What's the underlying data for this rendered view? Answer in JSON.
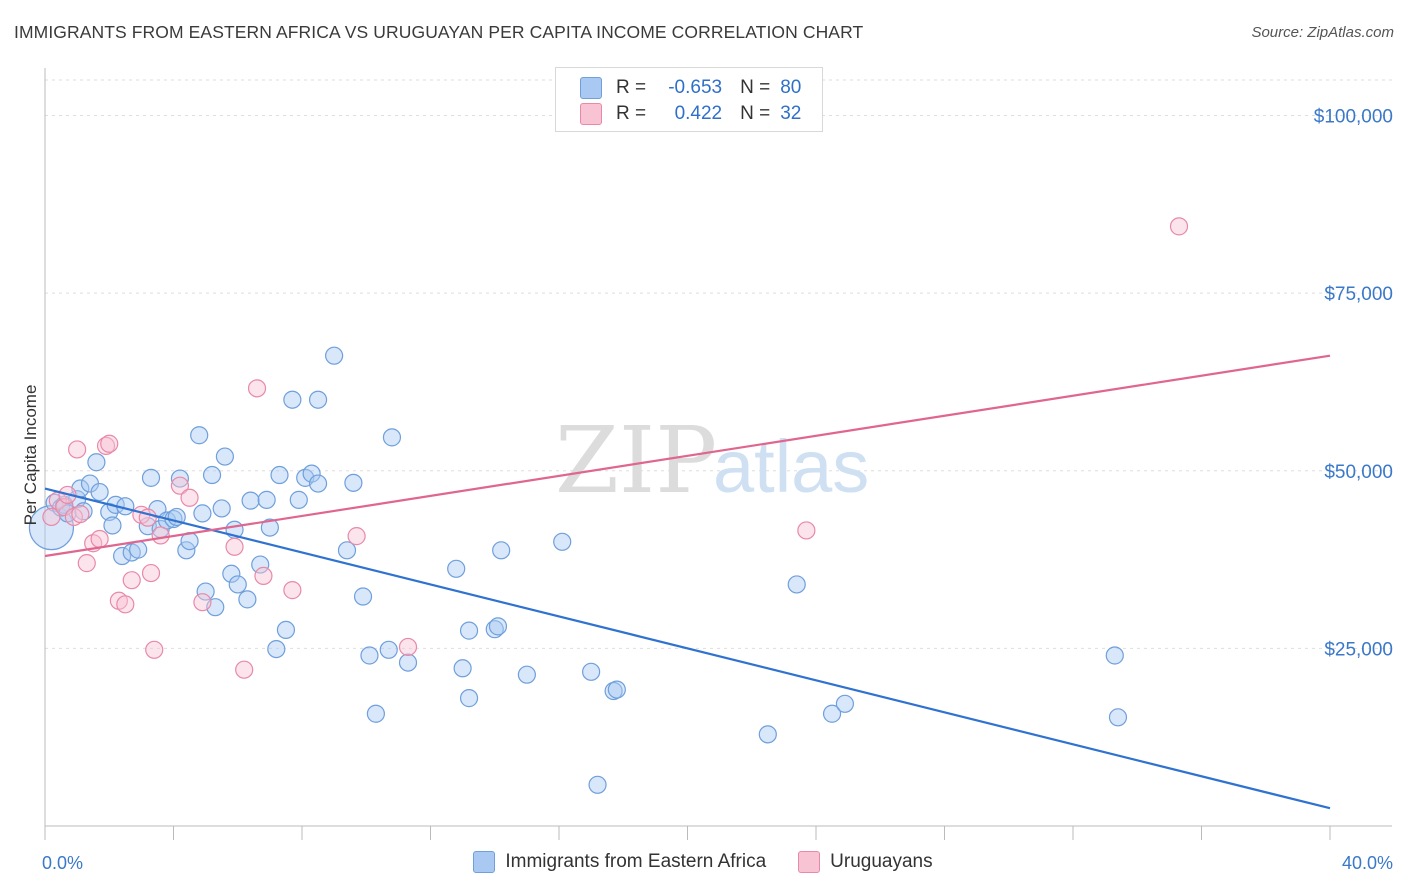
{
  "title": "IMMIGRANTS FROM EASTERN AFRICA VS URUGUAYAN PER CAPITA INCOME CORRELATION CHART",
  "source": "Source: ZipAtlas.com",
  "watermark": {
    "zip": "ZIP",
    "atlas": "atlas"
  },
  "legend": {
    "rows": [
      {
        "r_label": "R =",
        "r_value": "-0.653",
        "n_label": "N =",
        "n_value": "80",
        "color": "#a9c9f2",
        "border": "#6f9fdc"
      },
      {
        "r_label": "R =",
        "r_value": "0.422",
        "n_label": "N =",
        "n_value": "32",
        "color": "#f8c4d4",
        "border": "#e889a8"
      }
    ]
  },
  "bottom_legend": [
    {
      "label": "Immigrants from Eastern Africa",
      "color": "#a9c9f2",
      "border": "#6f9fdc"
    },
    {
      "label": "Uruguayans",
      "color": "#f8c4d4",
      "border": "#e889a8"
    }
  ],
  "chart_data": {
    "type": "scatter",
    "title": "IMMIGRANTS FROM EASTERN AFRICA VS URUGUAYAN PER CAPITA INCOME CORRELATION CHART",
    "xlabel": "",
    "ylabel": "Per Capita Income",
    "xlim": [
      0,
      40
    ],
    "ylim": [
      0,
      105000
    ],
    "x_tick_labels": [
      "0.0%",
      "40.0%"
    ],
    "y_ticks": [
      25000,
      50000,
      75000,
      100000
    ],
    "y_tick_labels": [
      "$25,000",
      "$50,000",
      "$75,000",
      "$100,000"
    ],
    "grid": true,
    "series": [
      {
        "name": "Immigrants from Eastern Africa",
        "color": "#6f9fdc",
        "fill": "rgba(169,201,242,0.45)",
        "trend": {
          "x": [
            0,
            40
          ],
          "y": [
            47500,
            2500
          ],
          "color": "#2f72d0"
        },
        "points": [
          [
            0.2,
            42000
          ],
          [
            0.3,
            45500
          ],
          [
            0.5,
            44800
          ],
          [
            0.6,
            45200
          ],
          [
            0.7,
            44000
          ],
          [
            1.0,
            46000
          ],
          [
            1.1,
            47500
          ],
          [
            1.2,
            44300
          ],
          [
            1.4,
            48200
          ],
          [
            1.6,
            51200
          ],
          [
            1.7,
            47000
          ],
          [
            2.0,
            44200
          ],
          [
            2.1,
            42300
          ],
          [
            2.2,
            45200
          ],
          [
            2.4,
            38000
          ],
          [
            2.5,
            45000
          ],
          [
            2.7,
            38500
          ],
          [
            2.9,
            38900
          ],
          [
            3.2,
            42200
          ],
          [
            3.3,
            49000
          ],
          [
            3.5,
            44600
          ],
          [
            3.6,
            41800
          ],
          [
            3.8,
            43000
          ],
          [
            4.0,
            43200
          ],
          [
            4.1,
            43500
          ],
          [
            4.2,
            48900
          ],
          [
            4.4,
            38800
          ],
          [
            4.5,
            40100
          ],
          [
            4.8,
            55000
          ],
          [
            4.9,
            44000
          ],
          [
            5.0,
            33000
          ],
          [
            5.2,
            49400
          ],
          [
            5.3,
            30800
          ],
          [
            5.5,
            44700
          ],
          [
            5.6,
            52000
          ],
          [
            5.8,
            35500
          ],
          [
            5.9,
            41700
          ],
          [
            6.0,
            34000
          ],
          [
            6.3,
            31900
          ],
          [
            6.4,
            45800
          ],
          [
            6.7,
            36800
          ],
          [
            6.9,
            45900
          ],
          [
            7.0,
            42000
          ],
          [
            7.2,
            24900
          ],
          [
            7.3,
            49400
          ],
          [
            7.5,
            27600
          ],
          [
            7.7,
            60000
          ],
          [
            7.9,
            45900
          ],
          [
            8.1,
            49000
          ],
          [
            8.3,
            49600
          ],
          [
            8.5,
            60000
          ],
          [
            8.5,
            48200
          ],
          [
            9.0,
            66200
          ],
          [
            9.4,
            38800
          ],
          [
            9.6,
            48300
          ],
          [
            9.9,
            32300
          ],
          [
            10.1,
            24000
          ],
          [
            10.3,
            15800
          ],
          [
            10.7,
            24800
          ],
          [
            10.8,
            54700
          ],
          [
            11.3,
            23000
          ],
          [
            12.8,
            36200
          ],
          [
            13.0,
            22200
          ],
          [
            13.2,
            18000
          ],
          [
            13.2,
            27500
          ],
          [
            14.0,
            27700
          ],
          [
            14.1,
            28100
          ],
          [
            14.2,
            38800
          ],
          [
            15.0,
            21300
          ],
          [
            16.1,
            40000
          ],
          [
            17.0,
            21700
          ],
          [
            17.2,
            5800
          ],
          [
            17.7,
            19000
          ],
          [
            17.8,
            19200
          ],
          [
            22.5,
            12900
          ],
          [
            23.4,
            34000
          ],
          [
            24.5,
            15800
          ],
          [
            24.9,
            17200
          ],
          [
            33.3,
            24000
          ],
          [
            33.4,
            15300
          ]
        ]
      },
      {
        "name": "Uruguayans",
        "color": "#e889a8",
        "fill": "rgba(248,196,212,0.45)",
        "trend": {
          "x": [
            0,
            40
          ],
          "y": [
            38000,
            66200
          ],
          "color": "#e0658f"
        },
        "points": [
          [
            0.2,
            43500
          ],
          [
            0.4,
            45800
          ],
          [
            0.6,
            44900
          ],
          [
            0.7,
            46600
          ],
          [
            0.9,
            43500
          ],
          [
            1.0,
            53000
          ],
          [
            1.1,
            43900
          ],
          [
            1.3,
            37000
          ],
          [
            1.5,
            39800
          ],
          [
            1.7,
            40400
          ],
          [
            1.9,
            53500
          ],
          [
            2.0,
            53800
          ],
          [
            2.3,
            31700
          ],
          [
            2.5,
            31200
          ],
          [
            2.7,
            34600
          ],
          [
            3.0,
            43800
          ],
          [
            3.2,
            43400
          ],
          [
            3.3,
            35600
          ],
          [
            3.4,
            24800
          ],
          [
            3.6,
            40900
          ],
          [
            4.2,
            47900
          ],
          [
            4.5,
            46200
          ],
          [
            4.9,
            31500
          ],
          [
            5.9,
            39300
          ],
          [
            6.2,
            22000
          ],
          [
            6.6,
            61600
          ],
          [
            6.8,
            35200
          ],
          [
            7.7,
            33200
          ],
          [
            9.7,
            40800
          ],
          [
            11.3,
            25200
          ],
          [
            23.7,
            41600
          ],
          [
            35.3,
            84400
          ]
        ]
      }
    ]
  }
}
